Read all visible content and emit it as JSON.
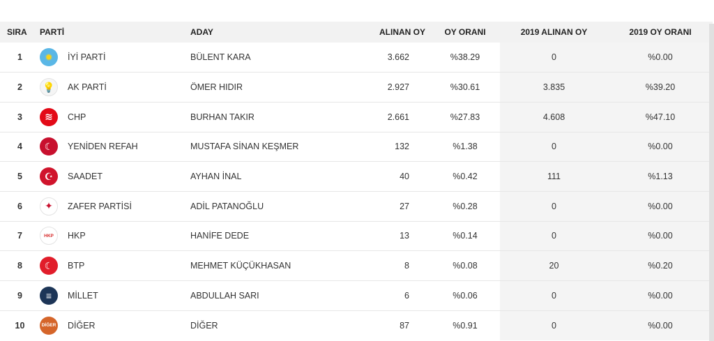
{
  "headers": {
    "sira": "SIRA",
    "parti": "PARTİ",
    "aday": "ADAY",
    "alinan_oy": "ALINAN OY",
    "oy_orani": "OY ORANI",
    "oy_2019": "2019 ALINAN OY",
    "oran_2019": "2019 OY ORANI"
  },
  "rows": [
    {
      "sira": "1",
      "party": "İYİ PARTİ",
      "candidate": "BÜLENT KARA",
      "votes": "3.662",
      "rate": "%38.29",
      "votes_2019": "0",
      "rate_2019": "%0.00",
      "logo_icon": "iyi-parti-sun-icon",
      "logo_bg": "#5ab7e6",
      "logo_fg": "#f7d21c",
      "logo_glyph": "✹"
    },
    {
      "sira": "2",
      "party": "AK PARTİ",
      "candidate": "ÖMER HIDIR",
      "votes": "2.927",
      "rate": "%30.61",
      "votes_2019": "3.835",
      "rate_2019": "%39.20",
      "logo_icon": "ak-parti-bulb-icon",
      "logo_bg": "#f5f5f5",
      "logo_fg": "#f3a31b",
      "logo_glyph": "💡"
    },
    {
      "sira": "3",
      "party": "CHP",
      "candidate": "BURHAN TAKIR",
      "votes": "2.661",
      "rate": "%27.83",
      "votes_2019": "4.608",
      "rate_2019": "%47.10",
      "logo_icon": "chp-six-arrows-icon",
      "logo_bg": "#e30a17",
      "logo_fg": "#ffffff",
      "logo_glyph": "≋"
    },
    {
      "sira": "4",
      "party": "YENİDEN REFAH",
      "candidate": "MUSTAFA SİNAN KEŞMER",
      "votes": "132",
      "rate": "%1.38",
      "votes_2019": "0",
      "rate_2019": "%0.00",
      "logo_icon": "yeniden-refah-emblem-icon",
      "logo_bg": "#c8102e",
      "logo_fg": "#ffffff",
      "logo_glyph": "☾"
    },
    {
      "sira": "5",
      "party": "SAADET",
      "candidate": "AYHAN İNAL",
      "votes": "40",
      "rate": "%0.42",
      "votes_2019": "111",
      "rate_2019": "%1.13",
      "logo_icon": "saadet-crescent-icon",
      "logo_bg": "#d0142c",
      "logo_fg": "#ffffff",
      "logo_glyph": "☪"
    },
    {
      "sira": "6",
      "party": "ZAFER PARTİSİ",
      "candidate": "ADİL PATANOĞLU",
      "votes": "27",
      "rate": "%0.28",
      "votes_2019": "0",
      "rate_2019": "%0.00",
      "logo_icon": "zafer-partisi-emblem-icon",
      "logo_bg": "#ffffff",
      "logo_fg": "#c8102e",
      "logo_glyph": "✦"
    },
    {
      "sira": "7",
      "party": "HKP",
      "candidate": "HANİFE DEDE",
      "votes": "13",
      "rate": "%0.14",
      "votes_2019": "0",
      "rate_2019": "%0.00",
      "logo_icon": "hkp-emblem-icon",
      "logo_bg": "#ffffff",
      "logo_fg": "#d62828",
      "logo_glyph": "HKP"
    },
    {
      "sira": "8",
      "party": "BTP",
      "candidate": "MEHMET KÜÇÜKHASAN",
      "votes": "8",
      "rate": "%0.08",
      "votes_2019": "20",
      "rate_2019": "%0.20",
      "logo_icon": "btp-emblem-icon",
      "logo_bg": "#e11d2a",
      "logo_fg": "#ffffff",
      "logo_glyph": "☾"
    },
    {
      "sira": "9",
      "party": "MİLLET",
      "candidate": "ABDULLAH SARI",
      "votes": "6",
      "rate": "%0.06",
      "votes_2019": "0",
      "rate_2019": "%0.00",
      "logo_icon": "millet-emblem-icon",
      "logo_bg": "#1d3557",
      "logo_fg": "#ffffff",
      "logo_glyph": "≡"
    },
    {
      "sira": "10",
      "party": "DİĞER",
      "candidate": "DİĞER",
      "votes": "87",
      "rate": "%0.91",
      "votes_2019": "0",
      "rate_2019": "%0.00",
      "logo_icon": "diger-badge-icon",
      "logo_bg": "#d5652a",
      "logo_fg": "#ffffff",
      "logo_glyph": "DİĞER"
    }
  ]
}
